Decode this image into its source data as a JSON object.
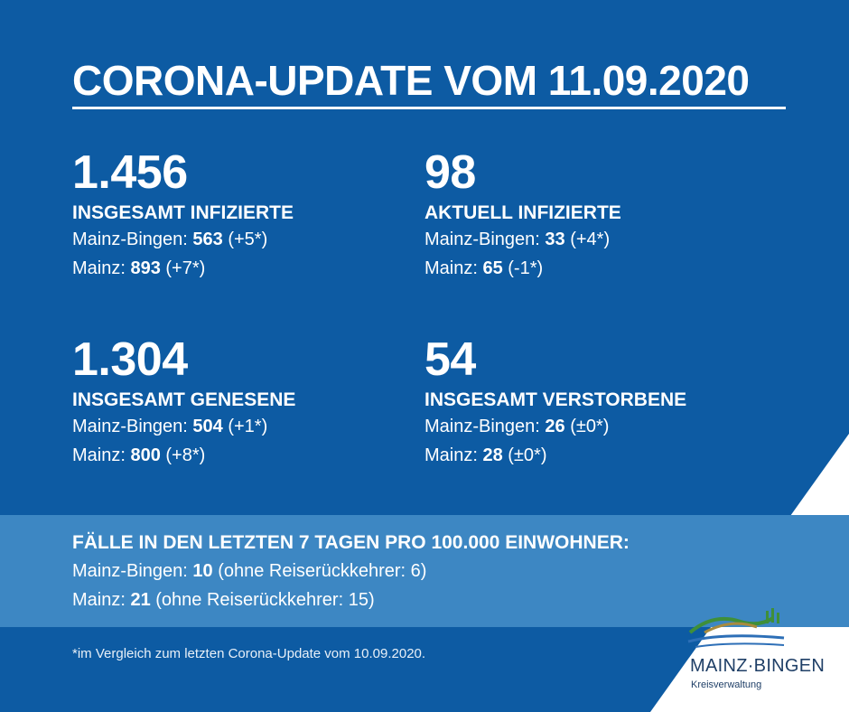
{
  "title": "CORONA-UPDATE VOM 11.09.2020",
  "stats": [
    {
      "value": "1.456",
      "label": "INSGESAMT INFIZIERTE",
      "lines": [
        {
          "region": "Mainz-Bingen: ",
          "value": "563",
          "delta": " (+5*)"
        },
        {
          "region": "Mainz: ",
          "value": "893",
          "delta": " (+7*)"
        }
      ]
    },
    {
      "value": "98",
      "label": "AKTUELL INFIZIERTE",
      "lines": [
        {
          "region": "Mainz-Bingen: ",
          "value": "33",
          "delta": " (+4*)"
        },
        {
          "region": "Mainz: ",
          "value": "65",
          "delta": " (-1*)"
        }
      ]
    },
    {
      "value": "1.304",
      "label": "INSGESAMT GENESENE",
      "lines": [
        {
          "region": "Mainz-Bingen: ",
          "value": "504",
          "delta": " (+1*)"
        },
        {
          "region": "Mainz: ",
          "value": "800",
          "delta": " (+8*)"
        }
      ]
    },
    {
      "value": "54",
      "label": "INSGESAMT VERSTORBENE",
      "lines": [
        {
          "region": "Mainz-Bingen: ",
          "value": "26",
          "delta": " (±0*)"
        },
        {
          "region": "Mainz: ",
          "value": "28",
          "delta": " (±0*)"
        }
      ]
    }
  ],
  "incidence": {
    "heading": "FÄLLE IN DEN LETZTEN 7 TAGEN PRO 100.000 EINWOHNER:",
    "lines": [
      {
        "region": "Mainz-Bingen: ",
        "value": "10",
        "note": " (ohne Reiserückkehrer: 6)"
      },
      {
        "region": "Mainz: ",
        "value": "21",
        "note": " (ohne Reiserückkehrer: 15)"
      }
    ]
  },
  "footnote": "*im Vergleich zum letzten Corona-Update vom 10.09.2020.",
  "logo": {
    "name": "MAINZ·BINGEN",
    "sub": "Kreisverwaltung"
  },
  "colors": {
    "background": "#0d5ba3",
    "band": "#3d87c3",
    "text": "#ffffff",
    "logo_text": "#1f3f67"
  }
}
